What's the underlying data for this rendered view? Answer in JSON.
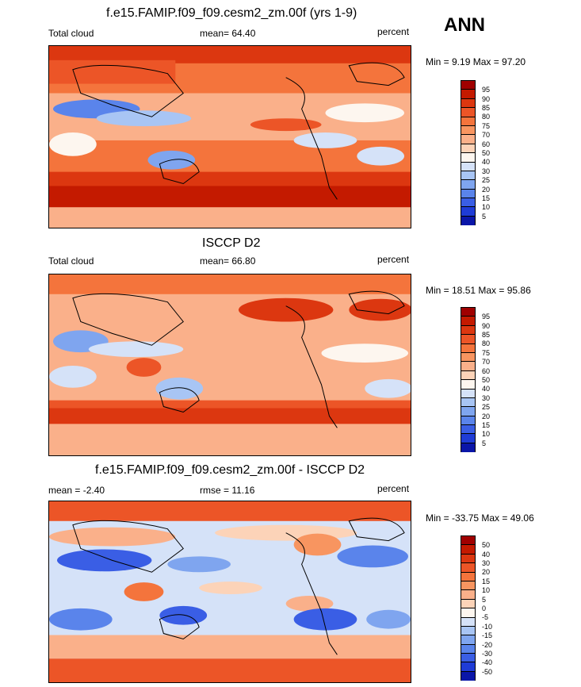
{
  "season": "ANN",
  "panels": [
    {
      "title": "f.e15.FAMIP.f09_f09.cesm2_zm.00f (yrs 1-9)",
      "left_label": "Total cloud",
      "center_label": "mean=  64.40",
      "right_label": "percent",
      "minmax": "Min =   9.19 Max =  97.20",
      "levels": [
        "95",
        "90",
        "85",
        "80",
        "75",
        "70",
        "60",
        "50",
        "40",
        "30",
        "25",
        "20",
        "15",
        "10",
        "5"
      ],
      "colors": [
        "#a00000",
        "#c41a00",
        "#dc3710",
        "#ec5527",
        "#f4743c",
        "#f89560",
        "#fab08a",
        "#fcd3b8",
        "#fdf6ef",
        "#d5e2f8",
        "#a8c5f4",
        "#7fa5ef",
        "#5a84eb",
        "#3a5ee5",
        "#1f3cd6",
        "#0a16a8"
      ]
    },
    {
      "title": "ISCCP D2",
      "left_label": "Total cloud",
      "center_label": "mean=  66.80",
      "right_label": "percent",
      "minmax": "Min =  18.51 Max =  95.86",
      "levels": [
        "95",
        "90",
        "85",
        "80",
        "75",
        "70",
        "60",
        "50",
        "40",
        "30",
        "25",
        "20",
        "15",
        "10",
        "5"
      ],
      "colors": [
        "#a00000",
        "#c41a00",
        "#dc3710",
        "#ec5527",
        "#f4743c",
        "#f89560",
        "#fab08a",
        "#fcd3b8",
        "#fdf6ef",
        "#d5e2f8",
        "#a8c5f4",
        "#7fa5ef",
        "#5a84eb",
        "#3a5ee5",
        "#1f3cd6",
        "#0a16a8"
      ]
    },
    {
      "title": "f.e15.FAMIP.f09_f09.cesm2_zm.00f - ISCCP D2",
      "left_label": "mean =  -2.40",
      "center_label": "rmse =  11.16",
      "right_label": "percent",
      "minmax": "Min = -33.75 Max =  49.06",
      "levels": [
        "50",
        "40",
        "30",
        "20",
        "15",
        "10",
        "5",
        "0",
        "-5",
        "-10",
        "-15",
        "-20",
        "-30",
        "-40",
        "-50"
      ],
      "colors": [
        "#a00000",
        "#c41a00",
        "#dc3710",
        "#ec5527",
        "#f4743c",
        "#f89560",
        "#fab08a",
        "#fcd3b8",
        "#fdf6ef",
        "#d5e2f8",
        "#a8c5f4",
        "#7fa5ef",
        "#5a84eb",
        "#3a5ee5",
        "#1f3cd6",
        "#0a16a8"
      ]
    }
  ]
}
